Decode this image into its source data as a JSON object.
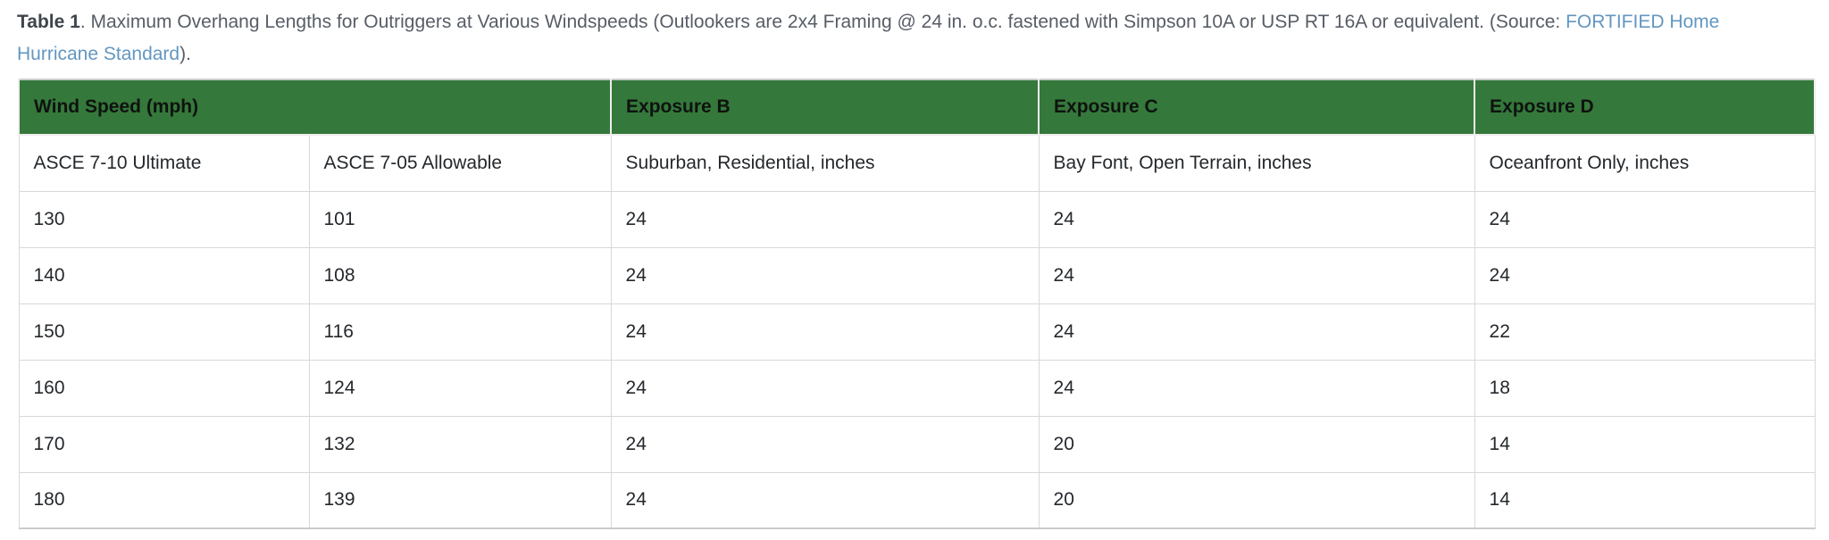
{
  "caption": {
    "label": "Table 1",
    "body": ". Maximum Overhang Lengths for Outriggers at Various Windspeeds (Outlookers are 2x4 Framing @ 24 in. o.c. fastened with Simpson 10A or USP RT 16A or equivalent. (Source: ",
    "link": "FORTIFIED Home Hurricane Standard",
    "suffix": ")."
  },
  "table": {
    "headers": {
      "wind_speed": "Wind Speed (mph)",
      "exposure_b": "Exposure B",
      "exposure_c": "Exposure C",
      "exposure_d": "Exposure D"
    },
    "subheaders": [
      "ASCE 7-10 Ultimate",
      "ASCE 7-05 Allowable",
      "Suburban, Residential, inches",
      "Bay Font, Open Terrain, inches",
      "Oceanfront Only, inches"
    ],
    "rows": [
      [
        "130",
        "101",
        "24",
        "24",
        "24"
      ],
      [
        "140",
        "108",
        "24",
        "24",
        "24"
      ],
      [
        "150",
        "116",
        "24",
        "24",
        "22"
      ],
      [
        "160",
        "124",
        "24",
        "24",
        "18"
      ],
      [
        "170",
        "132",
        "24",
        "20",
        "14"
      ],
      [
        "180",
        "139",
        "24",
        "20",
        "14"
      ]
    ]
  },
  "colors": {
    "header_green": "#35783B",
    "link_blue": "#6397C1",
    "caption_gray": "#575D66",
    "border_gray": "#D8D8D8",
    "cell_text": "#24282C"
  }
}
